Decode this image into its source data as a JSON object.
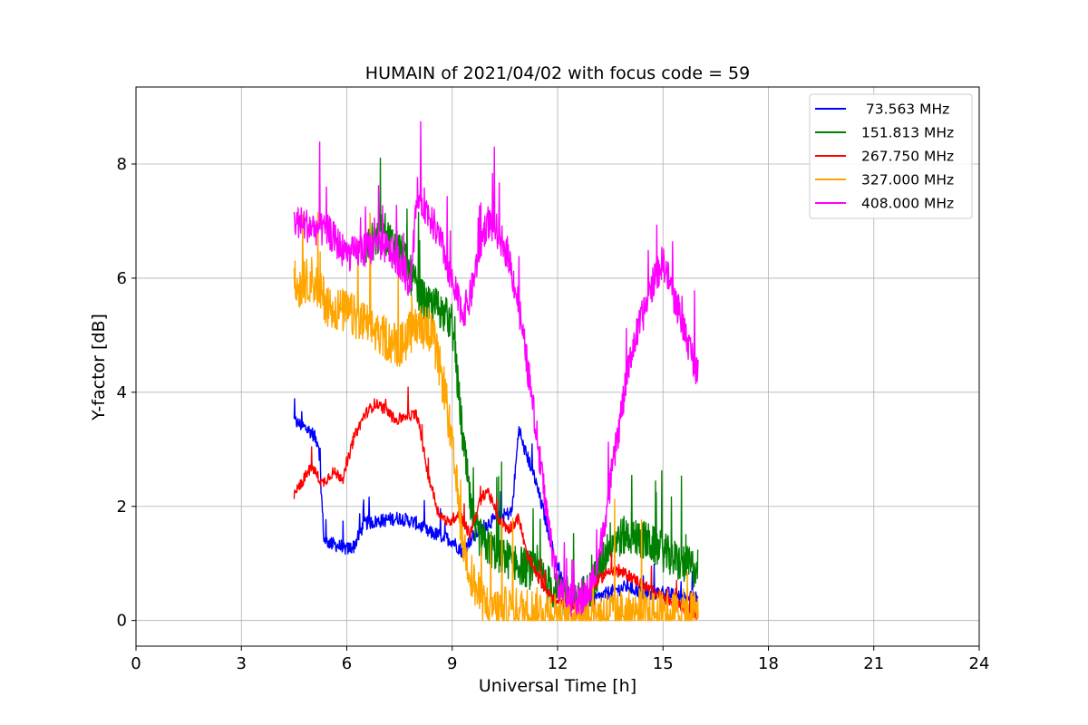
{
  "chart_data": {
    "type": "line",
    "title": "HUMAIN of 2021/04/02 with focus code = 59",
    "xlabel": "Universal Time [h]",
    "ylabel": "Y-factor [dB]",
    "xlim": [
      0,
      24
    ],
    "ylim": [
      -0.45,
      9.35
    ],
    "xticks": [
      0,
      3,
      6,
      9,
      12,
      15,
      18,
      21,
      24
    ],
    "yticks": [
      0,
      2,
      4,
      6,
      8
    ],
    "grid": true,
    "legend_position": "top-right",
    "series": [
      {
        "name": " 73.563 MHz",
        "color": "#0000ff",
        "noise": 0.12,
        "x": [
          4.5,
          5.0,
          5.2,
          5.35,
          6.0,
          6.2,
          6.5,
          7.0,
          7.5,
          8.0,
          8.3,
          8.6,
          9.0,
          9.3,
          9.5,
          9.8,
          10.0,
          10.3,
          10.7,
          10.9,
          11.0,
          11.3,
          11.6,
          11.8,
          12.0,
          12.2,
          12.5,
          12.8,
          13.0,
          13.5,
          14.0,
          14.5,
          15.0,
          15.5,
          16.0
        ],
        "y": [
          3.5,
          3.3,
          3.1,
          1.4,
          1.25,
          1.3,
          1.7,
          1.75,
          1.8,
          1.7,
          1.55,
          1.5,
          1.4,
          1.2,
          1.4,
          1.6,
          1.7,
          1.8,
          1.9,
          3.4,
          3.1,
          2.6,
          1.9,
          1.4,
          0.9,
          0.6,
          0.35,
          0.3,
          0.35,
          0.5,
          0.6,
          0.45,
          0.5,
          0.4,
          0.4
        ]
      },
      {
        "name": "151.813 MHz",
        "color": "#008000",
        "noise": 0.35,
        "x": [
          6.5,
          7.0,
          7.5,
          8.0,
          8.3,
          8.6,
          9.0,
          9.3,
          9.6,
          10.0,
          10.5,
          11.0,
          11.5,
          12.0,
          12.5,
          13.0,
          13.5,
          14.0,
          14.5,
          15.0,
          15.5,
          16.0
        ],
        "y": [
          6.5,
          6.8,
          6.5,
          5.8,
          5.5,
          5.5,
          5.2,
          3.2,
          1.6,
          1.3,
          1.1,
          0.95,
          0.8,
          0.45,
          0.3,
          0.6,
          1.4,
          1.5,
          1.4,
          1.2,
          1.0,
          0.9
        ]
      },
      {
        "name": "267.750 MHz",
        "color": "#ff0000",
        "noise": 0.1,
        "x": [
          4.5,
          4.8,
          5.0,
          5.3,
          5.6,
          5.9,
          6.2,
          6.5,
          6.8,
          7.1,
          7.4,
          7.7,
          8.0,
          8.3,
          8.6,
          8.9,
          9.2,
          9.5,
          9.8,
          10.0,
          10.3,
          10.6,
          10.9,
          11.1,
          11.4,
          11.7,
          12.0,
          12.3,
          12.6,
          13.0,
          13.5,
          14.0,
          14.5,
          15.0,
          15.5,
          16.0
        ],
        "y": [
          2.2,
          2.5,
          2.7,
          2.4,
          2.6,
          2.5,
          3.2,
          3.6,
          3.8,
          3.7,
          3.5,
          3.6,
          3.6,
          2.6,
          1.9,
          1.7,
          1.9,
          1.5,
          2.1,
          2.3,
          1.8,
          1.6,
          1.8,
          1.2,
          0.8,
          0.5,
          0.3,
          0.25,
          0.3,
          0.6,
          0.9,
          0.8,
          0.6,
          0.4,
          0.25,
          0.1
        ]
      },
      {
        "name": "327.000 MHz",
        "color": "#ffa500",
        "noise": 0.4,
        "x": [
          4.5,
          5.0,
          5.5,
          6.0,
          6.5,
          7.0,
          7.5,
          8.0,
          8.4,
          8.8,
          9.1,
          9.3,
          9.5,
          9.7,
          9.9,
          10.2,
          10.6,
          11.0,
          11.5,
          12.0,
          12.5,
          13.0,
          13.5,
          14.0,
          14.5,
          15.0,
          15.5,
          16.0
        ],
        "y": [
          5.8,
          6.0,
          5.5,
          5.4,
          5.2,
          5.0,
          4.8,
          5.2,
          5.1,
          4.0,
          2.5,
          1.4,
          0.9,
          0.5,
          0.3,
          0.2,
          0.2,
          0.18,
          0.18,
          0.15,
          0.12,
          0.12,
          0.14,
          0.15,
          0.12,
          0.12,
          0.15,
          0.15
        ]
      },
      {
        "name": "408.000 MHz",
        "color": "#ff00ff",
        "noise": 0.3,
        "x": [
          4.5,
          5.0,
          5.5,
          6.0,
          6.5,
          7.0,
          7.5,
          7.8,
          8.0,
          8.2,
          8.5,
          8.8,
          9.0,
          9.3,
          9.5,
          9.8,
          10.0,
          10.3,
          10.6,
          10.9,
          11.2,
          11.5,
          11.8,
          12.0,
          12.3,
          12.6,
          12.9,
          13.2,
          13.5,
          13.8,
          14.1,
          14.4,
          14.7,
          15.0,
          15.3,
          15.6,
          16.0
        ],
        "y": [
          7.0,
          6.9,
          6.8,
          6.4,
          6.5,
          6.6,
          6.3,
          5.9,
          7.4,
          7.3,
          6.9,
          6.4,
          5.9,
          5.4,
          5.6,
          6.6,
          7.0,
          6.8,
          6.4,
          5.5,
          4.2,
          2.8,
          1.4,
          0.7,
          0.4,
          0.3,
          0.5,
          1.2,
          2.4,
          3.6,
          4.7,
          5.3,
          5.9,
          6.3,
          5.7,
          5.1,
          4.3
        ]
      }
    ]
  }
}
